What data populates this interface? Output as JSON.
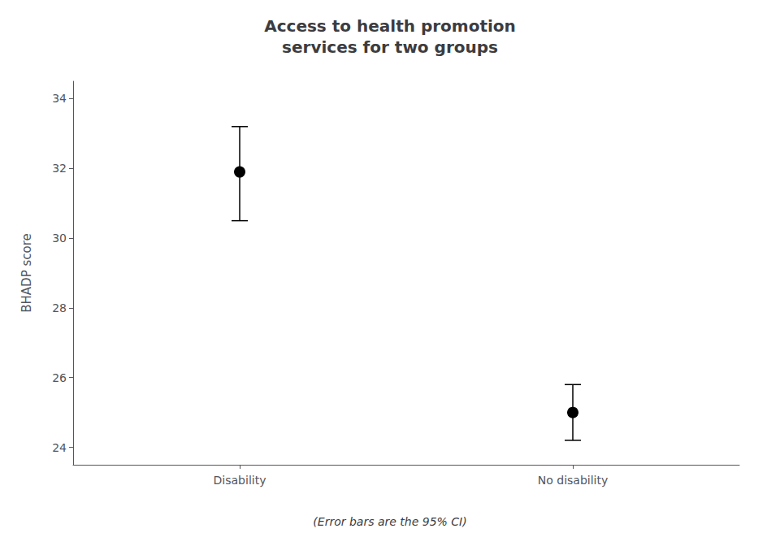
{
  "chart_data": {
    "type": "scatter",
    "title": "Access to health promotion\nservices for two groups",
    "ylabel": "BHADP score",
    "annotations": [
      "(Error bars are the 95% CI)"
    ],
    "categories": [
      "Disability",
      "No disability"
    ],
    "values": [
      31.9,
      25.0
    ],
    "ci_lower": [
      30.5,
      24.2
    ],
    "ci_upper": [
      33.2,
      25.8
    ],
    "ylim": [
      23.5,
      34.5
    ],
    "yticks": [
      24,
      26,
      28,
      30,
      32,
      34
    ],
    "grid": false,
    "color": "#000000",
    "marker": "circle"
  }
}
